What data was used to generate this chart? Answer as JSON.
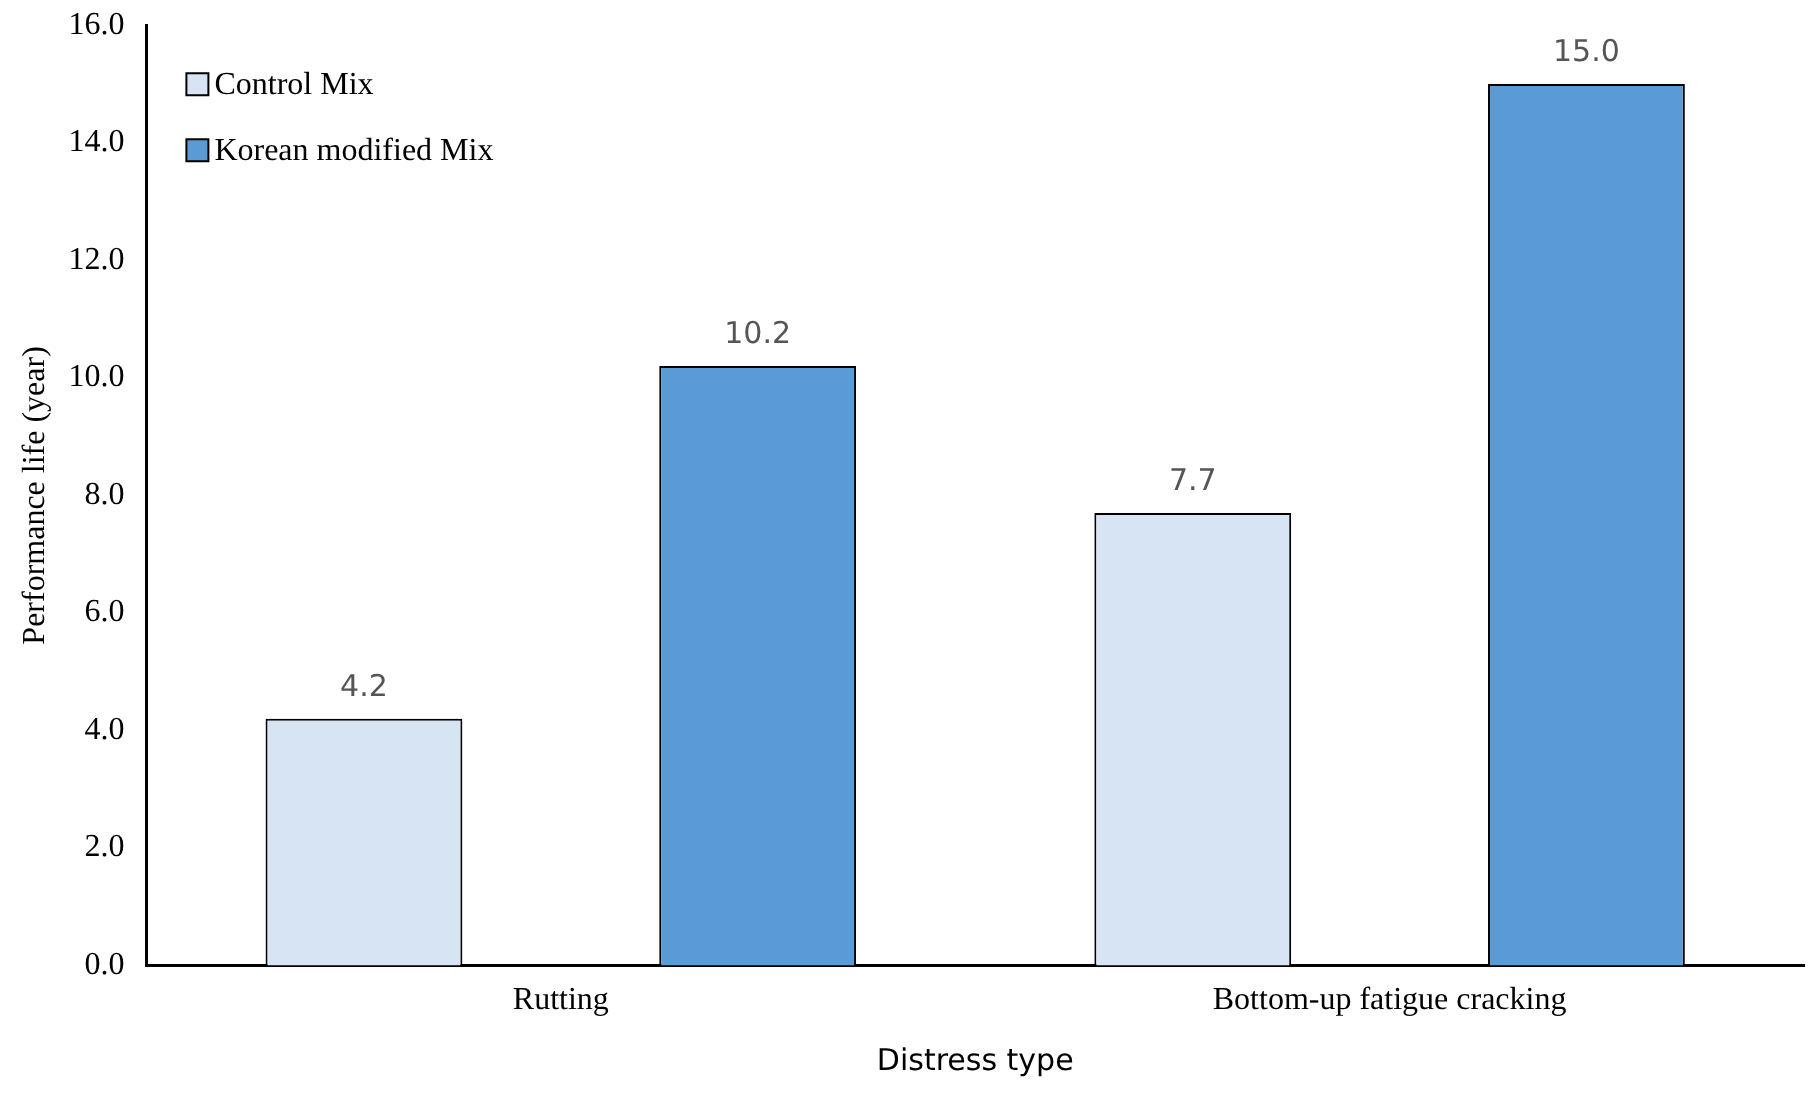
{
  "chart_data": {
    "type": "bar",
    "xlabel": "Distress type",
    "ylabel": "Performance life (year)",
    "categories": [
      "Rutting",
      "Bottom-up fatigue cracking"
    ],
    "series": [
      {
        "name": "Control Mix",
        "color": "#d6e4f3",
        "values": [
          4.2,
          7.7
        ],
        "value_labels": [
          "4.2",
          "7.7"
        ]
      },
      {
        "name": "Korean modified Mix",
        "color": "#5b9bd5",
        "values": [
          10.2,
          15.0
        ],
        "value_labels": [
          "10.2",
          "15.0"
        ]
      }
    ],
    "ylim": [
      0,
      16
    ],
    "yticks": [
      {
        "value": 0,
        "label": "0.0"
      },
      {
        "value": 2,
        "label": "2.0"
      },
      {
        "value": 4,
        "label": "4.0"
      },
      {
        "value": 6,
        "label": "6.0"
      },
      {
        "value": 8,
        "label": "8.0"
      },
      {
        "value": 10,
        "label": "10.0"
      },
      {
        "value": 12,
        "label": "12.0"
      },
      {
        "value": 14,
        "label": "14.0"
      },
      {
        "value": 16,
        "label": "16.0"
      }
    ],
    "grid": false,
    "legend": "top left"
  }
}
